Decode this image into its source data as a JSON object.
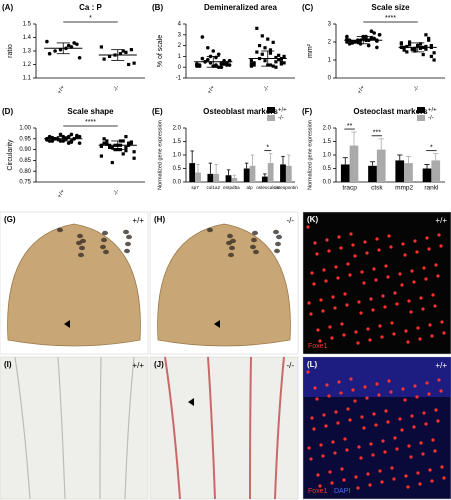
{
  "chart_data": [
    {
      "type": "dotplot",
      "panel": "(A)",
      "title": "Ca : P",
      "ylabel": "ratio",
      "ylim": [
        1.1,
        1.5
      ],
      "yticks": [
        1.1,
        1.2,
        1.3,
        1.4,
        1.5
      ],
      "series": [
        {
          "name": "+/+",
          "values": [
            1.37,
            1.35,
            1.33,
            1.32,
            1.31,
            1.3,
            1.28,
            1.25,
            1.36,
            1.34
          ],
          "mean": 1.32,
          "sd": 0.04
        },
        {
          "name": "-/-",
          "values": [
            1.33,
            1.31,
            1.29,
            1.28,
            1.27,
            1.26,
            1.24,
            1.21,
            1.2,
            1.3
          ],
          "mean": 1.27,
          "sd": 0.04
        }
      ],
      "annotations": [
        {
          "text": "*"
        }
      ]
    },
    {
      "type": "dotplot",
      "panel": "(B)",
      "title": "Demineralized area",
      "ylabel": "% of scale",
      "ylim": [
        -1,
        4
      ],
      "yticks": [
        -1,
        0,
        1,
        2,
        3,
        4
      ],
      "series": [
        {
          "name": "+/+",
          "values": [
            0.1,
            0.2,
            0.3,
            0.1,
            0.4,
            0.5,
            0.2,
            0.6,
            0.3,
            0.0,
            0.1,
            0.7,
            0.8,
            0.2,
            0.3,
            0.4,
            0.9,
            1.0,
            0.5,
            0.1,
            0.2,
            0.6,
            1.2,
            1.5,
            1.8,
            2.8,
            0.3,
            0.4,
            0.0,
            0.2
          ],
          "mean": 0.5,
          "sd": 0.5
        },
        {
          "name": "-/-",
          "values": [
            0.1,
            0.3,
            0.5,
            0.2,
            0.6,
            0.8,
            0.4,
            1.0,
            0.7,
            0.1,
            0.2,
            1.2,
            1.4,
            0.3,
            0.5,
            0.9,
            1.6,
            1.8,
            2.0,
            0.2,
            0.4,
            1.1,
            2.3,
            2.6,
            2.9,
            3.6,
            0.6,
            0.8,
            0.0,
            1.3
          ],
          "mean": 0.8,
          "sd": 0.7
        }
      ],
      "annotations": []
    },
    {
      "type": "dotplot",
      "panel": "(C)",
      "title": "Scale size",
      "ylabel": "mm²",
      "ylim": [
        0,
        3
      ],
      "yticks": [
        0,
        1,
        2,
        3
      ],
      "series": [
        {
          "name": "+/+",
          "values": [
            2.0,
            2.1,
            2.2,
            2.3,
            1.9,
            2.0,
            2.1,
            2.4,
            2.5,
            1.8,
            2.2,
            2.1,
            2.0,
            2.3,
            1.7,
            2.6,
            2.2,
            2.1,
            2.0,
            1.9,
            2.4,
            2.2,
            2.1,
            2.3,
            2.0,
            1.95,
            2.15,
            2.05,
            2.25,
            2.1
          ],
          "mean": 2.1,
          "sd": 0.2
        },
        {
          "name": "-/-",
          "values": [
            1.7,
            1.8,
            1.6,
            1.9,
            1.5,
            2.0,
            1.7,
            1.4,
            2.2,
            1.3,
            1.8,
            1.6,
            1.75,
            1.9,
            1.2,
            2.4,
            1.7,
            1.65,
            1.85,
            1.55,
            1.0,
            2.1,
            1.7,
            1.8,
            1.6,
            1.45,
            1.95,
            1.7,
            1.75,
            1.65
          ],
          "mean": 1.7,
          "sd": 0.25
        }
      ],
      "annotations": [
        {
          "text": "****"
        }
      ]
    },
    {
      "type": "dotplot",
      "panel": "(D)",
      "title": "Scale shape",
      "ylabel": "Circularity",
      "ylim": [
        0.75,
        1.0
      ],
      "yticks": [
        {
          "value": 0.75,
          "label": "0.75"
        },
        {
          "value": 0.8,
          "label": "0.80"
        },
        {
          "value": 0.85,
          "label": "0.85"
        },
        {
          "value": 0.9,
          "label": "0.90"
        },
        {
          "value": 0.95,
          "label": "0.95"
        },
        {
          "value": 1.0,
          "label": "1.00"
        }
      ],
      "series": [
        {
          "name": "+/+",
          "values": [
            0.95,
            0.96,
            0.94,
            0.95,
            0.97,
            0.95,
            0.94,
            0.96,
            0.95,
            0.93,
            0.96,
            0.95,
            0.94,
            0.95,
            0.96,
            0.97,
            0.95,
            0.94,
            0.95,
            0.96,
            0.93,
            0.95,
            0.96,
            0.94,
            0.95,
            0.955,
            0.945,
            0.965,
            0.935,
            0.95
          ],
          "mean": 0.95,
          "sd": 0.01
        },
        {
          "name": "-/-",
          "values": [
            0.92,
            0.93,
            0.91,
            0.94,
            0.9,
            0.92,
            0.95,
            0.89,
            0.93,
            0.88,
            0.92,
            0.91,
            0.94,
            0.87,
            0.93,
            0.96,
            0.9,
            0.92,
            0.91,
            0.93,
            0.86,
            0.92,
            0.94,
            0.9,
            0.84,
            0.925,
            0.915,
            0.935,
            0.895,
            0.92
          ],
          "mean": 0.92,
          "sd": 0.02
        }
      ],
      "annotations": [
        {
          "text": "****"
        }
      ]
    },
    {
      "type": "bar",
      "panel": "(E)",
      "title": "Osteoblast markers",
      "ylabel": "Normalized gene expression",
      "ylim": [
        0,
        2
      ],
      "yticks": [
        {
          "value": 0,
          "label": "0.0"
        },
        {
          "value": 0.5,
          "label": "0.5"
        },
        {
          "value": 1,
          "label": "1.0"
        },
        {
          "value": 1.5,
          "label": "1.5"
        },
        {
          "value": 2,
          "label": "2.0"
        }
      ],
      "categories": [
        "sp7",
        "col1a2",
        "entpd5a",
        "alp",
        "osteocalcin",
        "osteopontin"
      ],
      "series": [
        {
          "name": "+/+",
          "color": "#000000",
          "values": [
            0.7,
            0.3,
            0.25,
            0.5,
            0.2,
            0.65
          ],
          "errors": [
            0.45,
            0.4,
            0.2,
            0.2,
            0.1,
            0.3
          ]
        },
        {
          "name": "-/-",
          "color": "#aaaaaa",
          "values": [
            0.35,
            0.3,
            0.15,
            0.6,
            0.7,
            0.6
          ],
          "errors": [
            0.3,
            0.35,
            0.1,
            0.4,
            0.35,
            0.4
          ]
        }
      ],
      "annotations": [
        {
          "text": "*",
          "category": 4
        }
      ]
    },
    {
      "type": "bar",
      "panel": "(F)",
      "title": "Osteoclast markers",
      "ylabel": "Normalized gene expression",
      "ylim": [
        0,
        2
      ],
      "yticks": [
        {
          "value": 0,
          "label": "0.0"
        },
        {
          "value": 0.5,
          "label": "0.5"
        },
        {
          "value": 1,
          "label": "1.0"
        },
        {
          "value": 1.5,
          "label": "1.5"
        },
        {
          "value": 2,
          "label": "2.0"
        }
      ],
      "categories": [
        "tracp",
        "ctsk",
        "mmp2",
        "rankl"
      ],
      "series": [
        {
          "name": "+/+",
          "color": "#000000",
          "values": [
            0.65,
            0.6,
            0.8,
            0.5
          ],
          "errors": [
            0.25,
            0.15,
            0.2,
            0.15
          ]
        },
        {
          "name": "-/-",
          "color": "#aaaaaa",
          "values": [
            1.35,
            1.2,
            0.7,
            0.8
          ],
          "errors": [
            0.5,
            0.4,
            0.25,
            0.25
          ]
        }
      ],
      "annotations": [
        {
          "text": "**",
          "category": 0
        },
        {
          "text": "***",
          "category": 1
        },
        {
          "text": "*",
          "category": 3
        }
      ]
    }
  ],
  "panels": [
    {
      "label": "(G)",
      "genotype": "+/+"
    },
    {
      "label": "(H)",
      "genotype": "-/-"
    },
    {
      "label": "(K)",
      "genotype": "+/+",
      "stains": [
        "Foxe1"
      ]
    },
    {
      "label": "(I)",
      "genotype": "+/+"
    },
    {
      "label": "(J)",
      "genotype": "-/-"
    },
    {
      "label": "(L)",
      "genotype": "+/+",
      "stains": [
        "Foxe1",
        "DAPI"
      ]
    }
  ]
}
